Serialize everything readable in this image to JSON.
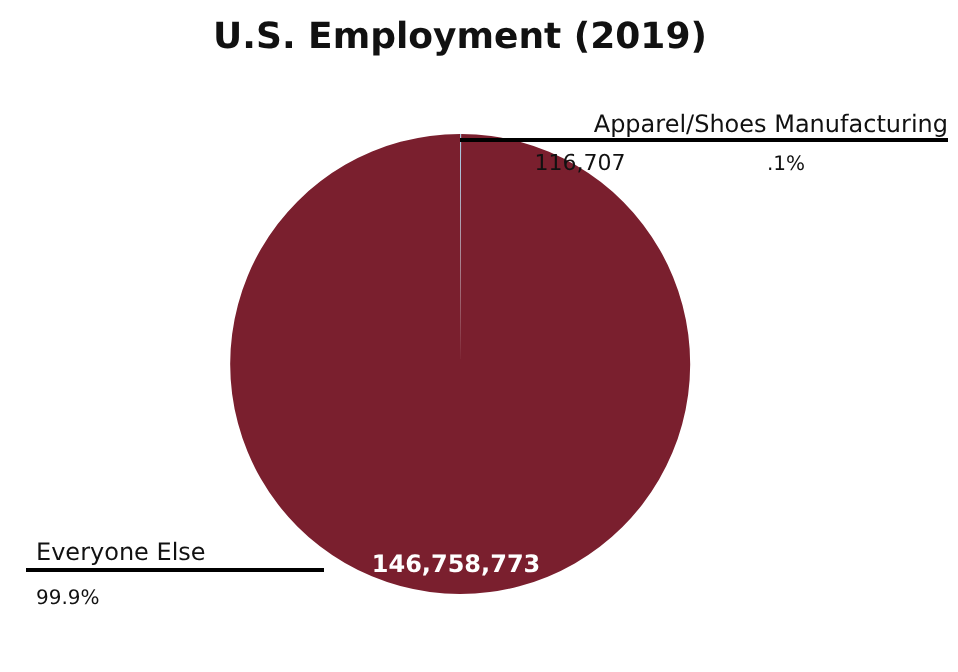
{
  "chart_data": {
    "type": "pie",
    "title": "U.S. Employment (2019)",
    "categories": [
      "Apparel/Shoes Manufacturing",
      "Everyone Else"
    ],
    "values": [
      116707,
      146758773
    ],
    "colors": [
      "#a9c4dc",
      "#7a1f2e"
    ],
    "value_labels": [
      "116,707",
      "146,758,773"
    ],
    "annotations": [
      ".1%",
      "99.9%"
    ]
  }
}
